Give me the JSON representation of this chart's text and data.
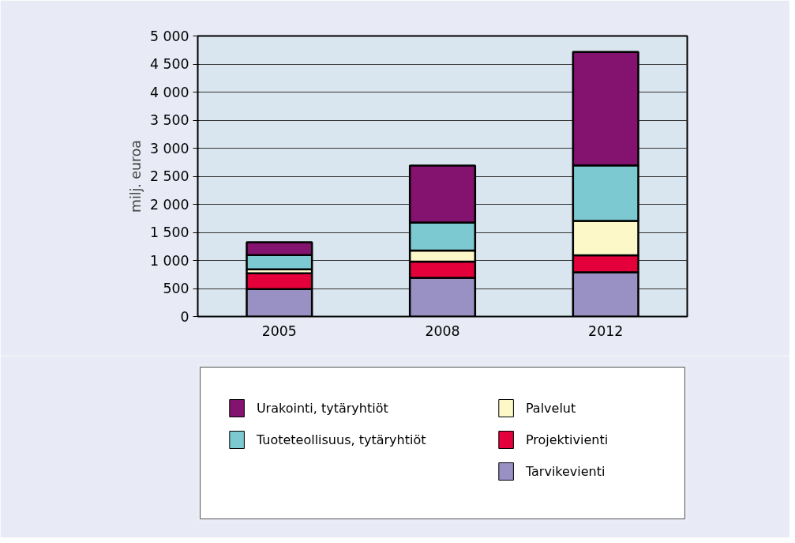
{
  "chart_data": {
    "type": "bar",
    "stacked": true,
    "ylabel": "milj. euroa",
    "categories": [
      "2005",
      "2008",
      "2012"
    ],
    "series": [
      {
        "name": "Tarvikevienti",
        "color": "#9990c4",
        "values": [
          490,
          690,
          790
        ]
      },
      {
        "name": "Projektivienti",
        "color": "#e4003a",
        "values": [
          280,
          290,
          300
        ]
      },
      {
        "name": "Palvelut",
        "color": "#fdf8c8",
        "values": [
          70,
          195,
          615
        ]
      },
      {
        "name": "Tuoteteollisuus, tytäryhtiöt",
        "color": "#7cc9d1",
        "values": [
          255,
          500,
          990
        ]
      },
      {
        "name": "Urakointi, tytäryhtiöt",
        "color": "#84126f",
        "values": [
          230,
          1015,
          2020
        ]
      }
    ],
    "ylim": [
      0,
      5000
    ],
    "yticks": [
      0,
      500,
      {
        "value": 1000,
        "label": "1 000"
      },
      {
        "value": 1500,
        "label": "1 500"
      },
      {
        "value": 2000,
        "label": "2 000"
      },
      {
        "value": 2500,
        "label": "2 500"
      },
      {
        "value": 3000,
        "label": "3 000"
      },
      {
        "value": 3500,
        "label": "3 500"
      },
      {
        "value": 4000,
        "label": "4 000"
      },
      {
        "value": 4500,
        "label": "4 500"
      },
      {
        "value": 5000,
        "label": "5 000"
      }
    ],
    "grid": "y",
    "legend": "bottom"
  }
}
